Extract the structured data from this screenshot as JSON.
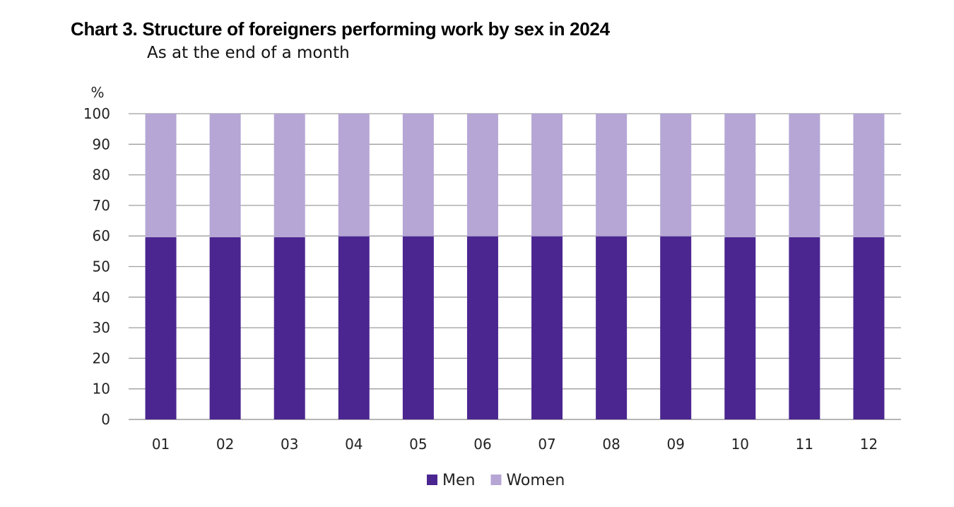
{
  "title": "Chart 3. Structure of foreigners performing work by sex in 2024",
  "subtitle": "As at the end of a month",
  "chart_data": {
    "type": "bar",
    "stacked": true,
    "categories": [
      "01",
      "02",
      "03",
      "04",
      "05",
      "06",
      "07",
      "08",
      "09",
      "10",
      "11",
      "12"
    ],
    "series": [
      {
        "name": "Men",
        "color": "#4b2690",
        "values": [
          59.6,
          59.6,
          59.6,
          59.9,
          59.9,
          59.9,
          59.9,
          59.9,
          59.9,
          59.6,
          59.6,
          59.6
        ]
      },
      {
        "name": "Women",
        "color": "#b5a6d5",
        "values": [
          40.4,
          40.4,
          40.4,
          40.1,
          40.1,
          40.1,
          40.1,
          40.1,
          40.1,
          40.4,
          40.4,
          40.4
        ]
      }
    ],
    "y_unit": "%",
    "ylim": [
      0,
      100
    ],
    "yticks": [
      "0",
      "10",
      "20",
      "30",
      "40",
      "50",
      "60",
      "70",
      "80",
      "90",
      "100"
    ],
    "grid": true,
    "legend_position": "bottom"
  }
}
